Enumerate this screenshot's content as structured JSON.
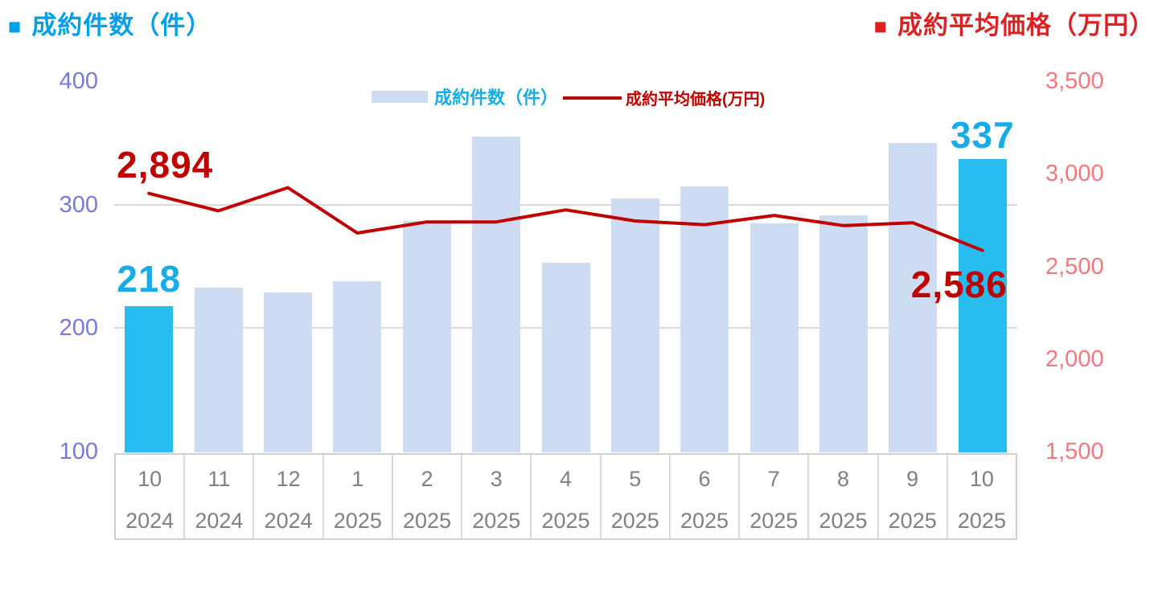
{
  "header": {
    "left_title": {
      "marker": "■",
      "text": "成約件数（件）",
      "color": "#009FE8"
    },
    "right_title": {
      "marker": "■",
      "text": "成約平均価格（万円）",
      "color": "#DB2121"
    }
  },
  "legend": {
    "bars_label": "成約件数（件）",
    "line_label": "成約平均価格(万円)"
  },
  "chart_data": {
    "type": "combo",
    "categories": [
      {
        "month": "10",
        "year": "2024"
      },
      {
        "month": "11",
        "year": "2024"
      },
      {
        "month": "12",
        "year": "2024"
      },
      {
        "month": "1",
        "year": "2025"
      },
      {
        "month": "2",
        "year": "2025"
      },
      {
        "month": "3",
        "year": "2025"
      },
      {
        "month": "4",
        "year": "2025"
      },
      {
        "month": "5",
        "year": "2025"
      },
      {
        "month": "6",
        "year": "2025"
      },
      {
        "month": "7",
        "year": "2025"
      },
      {
        "month": "8",
        "year": "2025"
      },
      {
        "month": "9",
        "year": "2025"
      },
      {
        "month": "10",
        "year": "2025"
      }
    ],
    "series": [
      {
        "name": "成約件数（件）",
        "type": "bar",
        "axis": "left",
        "values": [
          218,
          233,
          229,
          238,
          287,
          355,
          253,
          305,
          315,
          285,
          291,
          350,
          337
        ],
        "highlighted_indices": [
          0,
          12
        ]
      },
      {
        "name": "成約平均価格(万円)",
        "type": "line",
        "axis": "right",
        "values": [
          2894,
          2800,
          2925,
          2680,
          2740,
          2740,
          2805,
          2745,
          2725,
          2775,
          2720,
          2735,
          2586
        ]
      }
    ],
    "left_axis": {
      "min": 100,
      "max": 400,
      "tick_values": [
        400,
        300,
        200,
        100
      ],
      "tick_labels": [
        "400",
        "300",
        "200",
        "100"
      ]
    },
    "right_axis": {
      "min": 1500,
      "max": 3500,
      "tick_values": [
        3500,
        3000,
        2500,
        2000,
        1500
      ],
      "tick_labels": [
        "3,500",
        "3,000",
        "2,500",
        "2,000",
        "1,500"
      ]
    },
    "gridline_values": [
      300,
      200
    ],
    "grid": "horizontal-only",
    "legend_position": "top-center",
    "annotations": [
      {
        "target": "line",
        "index": 0,
        "text": "2,894"
      },
      {
        "target": "bar",
        "index": 0,
        "text": "218"
      },
      {
        "target": "line",
        "index": 12,
        "text": "2,586"
      },
      {
        "target": "bar",
        "index": 12,
        "text": "337"
      }
    ],
    "colors": {
      "bar": "#CDDCF2",
      "bar_highlight": "#29BCEE",
      "line": "#C00000",
      "left_axis_labels": "#7679DE",
      "right_axis_labels": "#F5787C",
      "x_labels": "#808080",
      "grid": "#D9D9D9",
      "annotation_bar": "#16ACE5",
      "annotation_line": "#C00000",
      "title_left": "#009FE8",
      "title_right": "#DB2121"
    }
  }
}
